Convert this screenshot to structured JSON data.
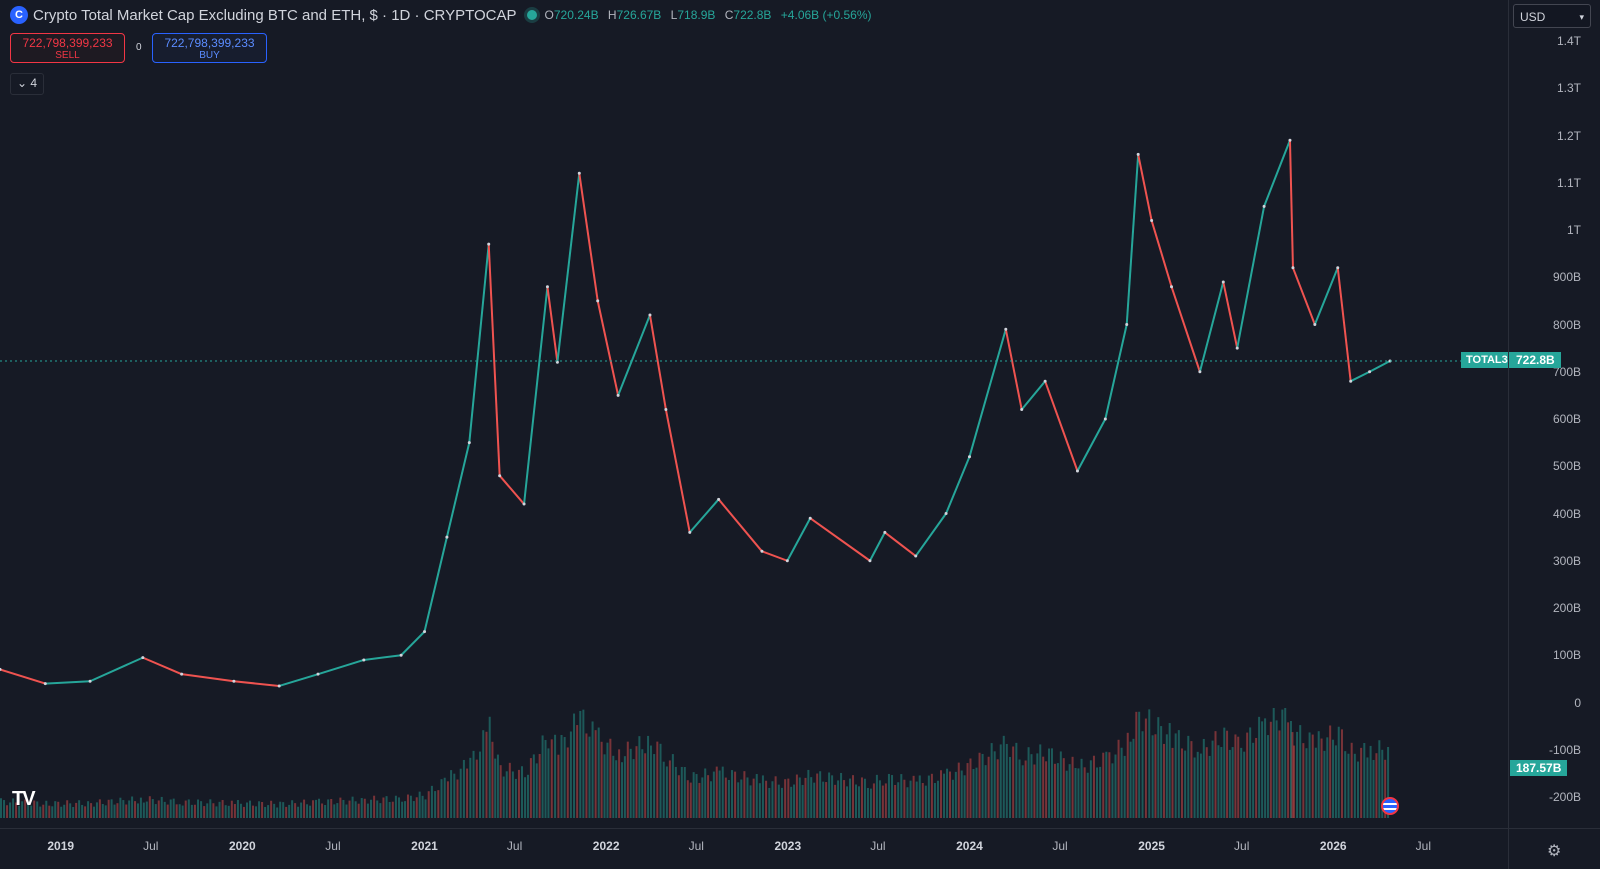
{
  "header": {
    "symbol_icon": "crypto-cap-icon",
    "title": "Crypto Total Market Cap Excluding BTC and ETH, $ · 1D · CRYPTOCAP",
    "ohlc": {
      "open_label": "O",
      "open": "720.24B",
      "high_label": "H",
      "high": "726.67B",
      "low_label": "L",
      "low": "718.9B",
      "close_label": "C",
      "close": "722.8B",
      "change": "+4.06B (+0.56%)"
    }
  },
  "trade": {
    "sell_price": "722,798,399,233",
    "sell_label": "SELL",
    "buy_price": "722,798,399,233",
    "buy_label": "BUY",
    "spread": "0"
  },
  "indicators_toggle": {
    "icon": "chevron-down-icon",
    "count": "4"
  },
  "price_scale": {
    "currency": "USD",
    "labels": [
      "1.4T",
      "1.3T",
      "1.2T",
      "1.1T",
      "1T",
      "900B",
      "800B",
      "700B",
      "600B",
      "500B",
      "400B",
      "300B",
      "200B",
      "100B",
      "0",
      "-100B",
      "-200B"
    ],
    "last_price_badge": "722.8B",
    "volume_badge": "187.57B"
  },
  "symbol_badge": "TOTAL3",
  "time_scale": [
    "2019",
    "Jul",
    "2020",
    "Jul",
    "2021",
    "Jul",
    "2022",
    "Jul",
    "2023",
    "Jul",
    "2024",
    "Jul",
    "2025",
    "Jul",
    "2026",
    "Jul"
  ],
  "colors": {
    "up": "#26a69a",
    "down": "#ef5350",
    "background": "#161a25"
  },
  "chart_data": {
    "type": "line",
    "title": "Crypto Total Market Cap Excluding BTC and ETH, $ · 1D · CRYPTOCAP",
    "xlabel": "",
    "ylabel": "",
    "ylim": [
      -0.25,
      1.45
    ],
    "y_unit": "trillions USD",
    "last_price": 0.7228,
    "series": [
      {
        "values": [
          {
            "x": "2018-09-01",
            "y": 0.07
          },
          {
            "x": "2018-12-01",
            "y": 0.04
          },
          {
            "x": "2019-03-01",
            "y": 0.045
          },
          {
            "x": "2019-06-15",
            "y": 0.095
          },
          {
            "x": "2019-09-01",
            "y": 0.06
          },
          {
            "x": "2019-12-15",
            "y": 0.045
          },
          {
            "x": "2020-03-15",
            "y": 0.035
          },
          {
            "x": "2020-06-01",
            "y": 0.06
          },
          {
            "x": "2020-09-01",
            "y": 0.09
          },
          {
            "x": "2020-11-15",
            "y": 0.1
          },
          {
            "x": "2021-01-01",
            "y": 0.15
          },
          {
            "x": "2021-02-15",
            "y": 0.35
          },
          {
            "x": "2021-04-01",
            "y": 0.55
          },
          {
            "x": "2021-05-10",
            "y": 0.97
          },
          {
            "x": "2021-06-01",
            "y": 0.48
          },
          {
            "x": "2021-07-20",
            "y": 0.42
          },
          {
            "x": "2021-09-05",
            "y": 0.88
          },
          {
            "x": "2021-09-25",
            "y": 0.72
          },
          {
            "x": "2021-11-08",
            "y": 1.12
          },
          {
            "x": "2021-12-15",
            "y": 0.85
          },
          {
            "x": "2022-01-25",
            "y": 0.65
          },
          {
            "x": "2022-03-30",
            "y": 0.82
          },
          {
            "x": "2022-05-01",
            "y": 0.62
          },
          {
            "x": "2022-06-18",
            "y": 0.36
          },
          {
            "x": "2022-08-15",
            "y": 0.43
          },
          {
            "x": "2022-11-10",
            "y": 0.32
          },
          {
            "x": "2022-12-31",
            "y": 0.3
          },
          {
            "x": "2023-02-15",
            "y": 0.39
          },
          {
            "x": "2023-06-15",
            "y": 0.3
          },
          {
            "x": "2023-07-15",
            "y": 0.36
          },
          {
            "x": "2023-09-15",
            "y": 0.31
          },
          {
            "x": "2023-11-15",
            "y": 0.4
          },
          {
            "x": "2024-01-01",
            "y": 0.52
          },
          {
            "x": "2024-03-14",
            "y": 0.79
          },
          {
            "x": "2024-04-15",
            "y": 0.62
          },
          {
            "x": "2024-06-01",
            "y": 0.68
          },
          {
            "x": "2024-08-05",
            "y": 0.49
          },
          {
            "x": "2024-09-30",
            "y": 0.6
          },
          {
            "x": "2024-11-12",
            "y": 0.8
          },
          {
            "x": "2024-12-05",
            "y": 1.16
          },
          {
            "x": "2025-01-01",
            "y": 1.02
          },
          {
            "x": "2025-02-10",
            "y": 0.88
          },
          {
            "x": "2025-04-08",
            "y": 0.7
          },
          {
            "x": "2025-05-25",
            "y": 0.89
          },
          {
            "x": "2025-06-22",
            "y": 0.75
          },
          {
            "x": "2025-08-15",
            "y": 1.05
          },
          {
            "x": "2025-10-06",
            "y": 1.19
          },
          {
            "x": "2025-10-12",
            "y": 0.92
          },
          {
            "x": "2025-11-25",
            "y": 0.8
          },
          {
            "x": "2026-01-10",
            "y": 0.92
          },
          {
            "x": "2026-02-05",
            "y": 0.68
          },
          {
            "x": "2026-03-15",
            "y": 0.7
          },
          {
            "x": "2026-04-25",
            "y": 0.7228
          }
        ]
      }
    ],
    "volume_last": 0.18757
  }
}
